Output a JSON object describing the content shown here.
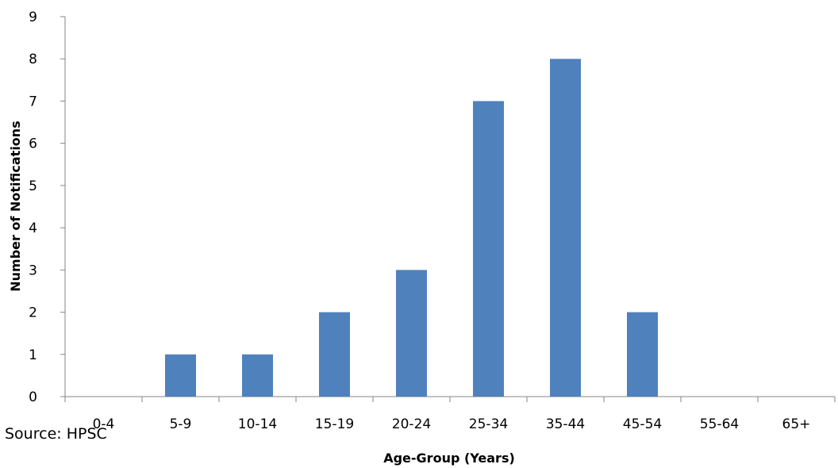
{
  "chart_data": {
    "type": "bar",
    "title": "",
    "xlabel": "Age-Group (Years)",
    "ylabel": "Number of Notifications",
    "categories": [
      "0-4",
      "5-9",
      "10-14",
      "15-19",
      "20-24",
      "25-34",
      "35-44",
      "45-54",
      "55-64",
      "65+"
    ],
    "series": [
      {
        "values": [
          0,
          1,
          1,
          2,
          3,
          7,
          8,
          2,
          0,
          0
        ],
        "color": "#4F81BD"
      }
    ],
    "ylim": [
      0,
      9
    ],
    "yticks": [
      "0",
      "1",
      "2",
      "3",
      "4",
      "5",
      "6",
      "7",
      "8",
      "9"
    ],
    "grid": false,
    "legend": "none"
  },
  "source_note": "Source: HPSC"
}
